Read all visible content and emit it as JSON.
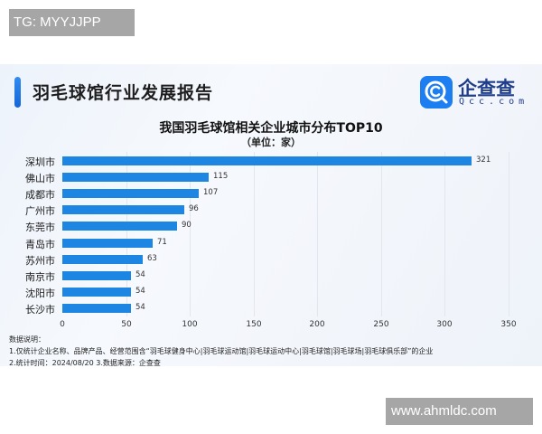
{
  "watermarks": {
    "top": "TG: MYYJJPP",
    "bottom": "www.ahmldc.com"
  },
  "header": {
    "title": "羽毛球馆行业发展报告"
  },
  "logo": {
    "name": "企查查",
    "domain": "Qcc.com",
    "icon": "qcc-logo-icon",
    "color": "#1c7ef0"
  },
  "chart": {
    "title": "我国羽毛球馆相关企业城市分布TOP10",
    "subtitle": "（单位：家）",
    "bar_color": "#1c86e2"
  },
  "notes": {
    "heading": "数据说明：",
    "line1": "1.仅统计企业名称、品牌产品、经营范围含“羽毛球健身中心|羽毛球运动馆|羽毛球运动中心|羽毛球馆|羽毛球场|羽毛球俱乐部”的企业",
    "line2": "2.统计时间：2024/08/20    3.数据来源：企查查"
  },
  "chart_data": {
    "type": "bar",
    "orientation": "horizontal",
    "title": "我国羽毛球馆相关企业城市分布TOP10",
    "subtitle": "（单位：家）",
    "categories": [
      "深圳市",
      "佛山市",
      "成都市",
      "广州市",
      "东莞市",
      "青岛市",
      "苏州市",
      "南京市",
      "沈阳市",
      "长沙市"
    ],
    "values": [
      321,
      115,
      107,
      96,
      90,
      71,
      63,
      54,
      54,
      54
    ],
    "xlabel": "",
    "ylabel": "",
    "xlim": [
      0,
      350
    ],
    "xticks": [
      "0",
      "50",
      "100",
      "150",
      "200",
      "250",
      "300",
      "350"
    ],
    "grid": "vertical",
    "legend": "none",
    "data_labels": true
  }
}
